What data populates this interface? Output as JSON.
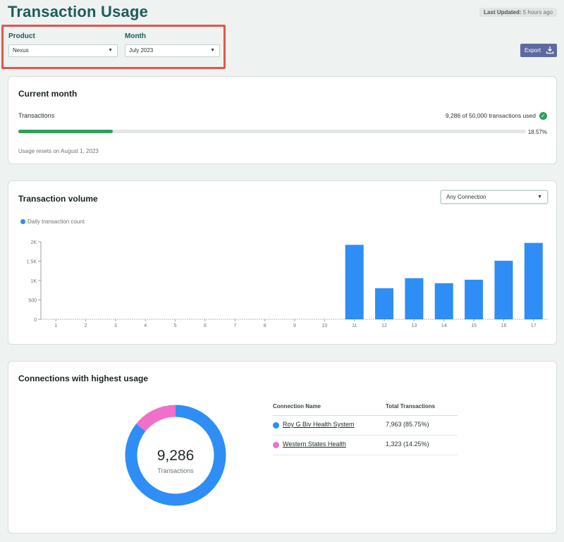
{
  "page": {
    "title": "Transaction Usage",
    "last_updated_label": "Last Updated:",
    "last_updated_value": "5 hours ago"
  },
  "filters": {
    "product_label": "Product",
    "product_value": "Nexus",
    "month_label": "Month",
    "month_value": "July 2023"
  },
  "toolbar": {
    "export_label": "Export",
    "export_icon": "download-icon"
  },
  "current_month": {
    "title": "Current month",
    "transactions_label": "Transactions",
    "used_text": "9,286 of 50,000 transactions used",
    "status_icon": "check-circle-icon",
    "percent_text": "18.57%",
    "progress_fraction": 0.1857,
    "reset_text": "Usage resets on August 1, 2023",
    "accent_color": "#2f9e5a"
  },
  "transaction_volume": {
    "title": "Transaction volume",
    "connection_select": "Any Connection"
  },
  "chart_data": {
    "type": "bar",
    "legend": [
      "Daily transaction count"
    ],
    "legend_position": "top-left",
    "categories": [
      "1",
      "2",
      "3",
      "4",
      "5",
      "6",
      "7",
      "8",
      "9",
      "10",
      "11",
      "12",
      "13",
      "14",
      "15",
      "16",
      "17"
    ],
    "series": [
      {
        "name": "Daily transaction count",
        "values": [
          0,
          0,
          0,
          0,
          0,
          0,
          0,
          0,
          0,
          0,
          1920,
          800,
          1060,
          930,
          1020,
          1510,
          1970
        ],
        "color": "#2e8ef5"
      }
    ],
    "y_ticks": [
      "0",
      "500",
      "1K",
      "1.5K",
      "2K"
    ],
    "y_tick_values": [
      0,
      500,
      1000,
      1500,
      2000
    ],
    "ylim": [
      0,
      2000
    ],
    "grid": false
  },
  "connections": {
    "title": "Connections with highest usage",
    "total_value": "9,286",
    "total_label": "Transactions",
    "columns": [
      "Connection Name",
      "Total Transactions"
    ],
    "rows": [
      {
        "name": "Roy G Biv Health System",
        "total": "7,963  (85.75%)",
        "share": 85.75,
        "color": "#2e8ef5"
      },
      {
        "name": "Western States Health",
        "total": "1,323  (14.25%)",
        "share": 14.25,
        "color": "#f06fc9"
      }
    ]
  }
}
